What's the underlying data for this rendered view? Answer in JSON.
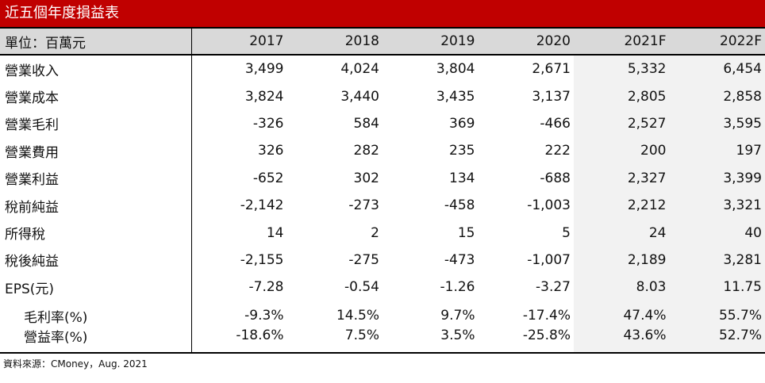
{
  "title": "近五個年度損益表",
  "header": {
    "unit_label": "單位：百萬元",
    "years": [
      "2017",
      "2018",
      "2019",
      "2020",
      "2021F",
      "2022F"
    ]
  },
  "rows": [
    {
      "label": "營業收入",
      "values": [
        "3,499",
        "4,024",
        "3,804",
        "2,671",
        "5,332",
        "6,454"
      ]
    },
    {
      "label": "營業成本",
      "values": [
        "3,824",
        "3,440",
        "3,435",
        "3,137",
        "2,805",
        "2,858"
      ]
    },
    {
      "label": "營業毛利",
      "values": [
        "-326",
        "584",
        "369",
        "-466",
        "2,527",
        "3,595"
      ]
    },
    {
      "label": "營業費用",
      "values": [
        "326",
        "282",
        "235",
        "222",
        "200",
        "197"
      ]
    },
    {
      "label": "營業利益",
      "values": [
        "-652",
        "302",
        "134",
        "-688",
        "2,327",
        "3,399"
      ]
    },
    {
      "label": "稅前純益",
      "values": [
        "-2,142",
        "-273",
        "-458",
        "-1,003",
        "2,212",
        "3,321"
      ]
    },
    {
      "label": "所得稅",
      "values": [
        "14",
        "2",
        "15",
        "5",
        "24",
        "40"
      ]
    },
    {
      "label": "稅後純益",
      "values": [
        "-2,155",
        "-275",
        "-473",
        "-1,007",
        "2,189",
        "3,281"
      ]
    },
    {
      "label": "EPS(元)",
      "values": [
        "-7.28",
        "-0.54",
        "-1.26",
        "-3.27",
        "8.03",
        "11.75"
      ]
    },
    {
      "label": "毛利率(%)",
      "values": [
        "-9.3%",
        "14.5%",
        "9.7%",
        "-17.4%",
        "47.4%",
        "55.7%"
      ]
    },
    {
      "label": "營益率(%)",
      "values": [
        "-18.6%",
        "7.5%",
        "3.5%",
        "-25.8%",
        "43.6%",
        "52.7%"
      ]
    }
  ],
  "source": "資料來源：CMoney，Aug. 2021",
  "colors": {
    "title_bg": "#c00000",
    "header_bg": "#d9d9d9",
    "forecast_bg": "#f2f2f2"
  }
}
